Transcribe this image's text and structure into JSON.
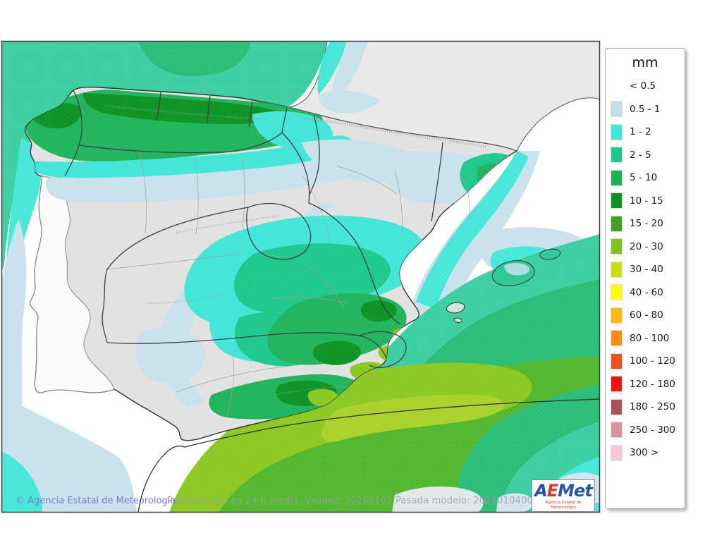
{
  "map": {
    "region_label": "iberian-peninsula-precipitation-field",
    "border_color": "#3c3c3c",
    "sea_no_data_color": "#ffffff",
    "land_no_data_color": "#e2e2e2"
  },
  "legend": {
    "title": "mm",
    "entries": [
      {
        "label": "< 0.5",
        "color": null
      },
      {
        "label": "0.5 - 1",
        "color": "#C4DEE8"
      },
      {
        "label": "1 - 2",
        "color": "#3FE7D9"
      },
      {
        "label": "2 - 5",
        "color": "#1FC98B"
      },
      {
        "label": "5 - 10",
        "color": "#1CB155"
      },
      {
        "label": "10 - 15",
        "color": "#0D9222"
      },
      {
        "label": "15 - 20",
        "color": "#44A11F"
      },
      {
        "label": "20 - 30",
        "color": "#7FC31D"
      },
      {
        "label": "30 - 40",
        "color": "#C9DE13"
      },
      {
        "label": "40 - 60",
        "color": "#FFFF00"
      },
      {
        "label": "60 - 80",
        "color": "#FCB814"
      },
      {
        "label": "80 - 100",
        "color": "#FC8C14"
      },
      {
        "label": "100 - 120",
        "color": "#F4511A"
      },
      {
        "label": "120 - 180",
        "color": "#FB0F0F"
      },
      {
        "label": "180 - 250",
        "color": "#AE5056"
      },
      {
        "label": "250 - 300",
        "color": "#D8939D"
      },
      {
        "label": "300 >",
        "color": "#F2CBD4"
      }
    ]
  },
  "footer": {
    "copyright": "© Agencia Estatal de Meteorología",
    "info": "Precipitación en 24 h media. Validez: 20260105 Pasada modelo: 2026010400"
  },
  "logo": {
    "letter_a": "A",
    "letter_e": "E",
    "letters_met": "Met",
    "subtitle": "Agencia Estatal de Meteorología"
  }
}
